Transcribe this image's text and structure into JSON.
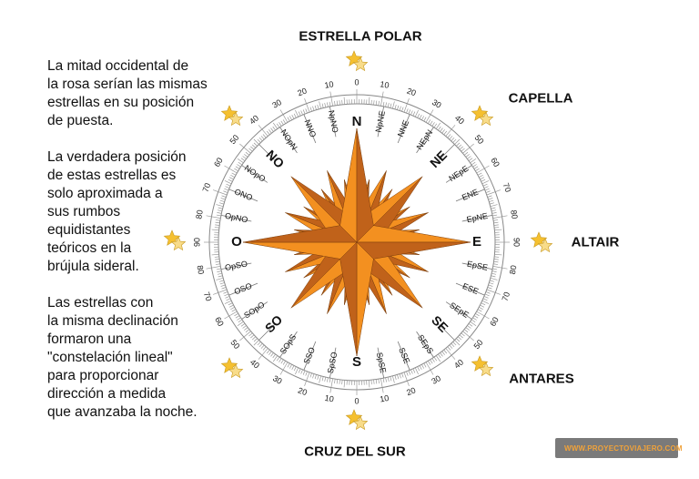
{
  "text_blocks": [
    "La mitad occidental de\nla rosa serían las mismas\nestrellas en su posición\nde puesta.",
    "La verdadera posición\nde estas estrellas es\nsolo aproximada a\nsus rumbos\nequidistantes\nteóricos en la\nbrújula sideral.",
    "Las estrellas con\nla misma declinación\nformaron una\n\"constelación lineal\"\npara proporcionar\ndirección a medida\nque avanzaba la noche."
  ],
  "star_labels": {
    "north": "ESTRELLA POLAR",
    "northeast": "CAPELLA",
    "east": "ALTAIR",
    "southeast": "ANTARES",
    "south": "CRUZ DEL SUR"
  },
  "compass_points": [
    "N",
    "NpNE",
    "NNE",
    "NEpN",
    "NE",
    "NEpE",
    "ENE",
    "EpNE",
    "E",
    "EpSE",
    "ESE",
    "SEpE",
    "SE",
    "SEpS",
    "SSE",
    "SpSE",
    "S",
    "SpSO",
    "SSO",
    "SOpS",
    "SO",
    "SOpO",
    "OSO",
    "OpSO",
    "O",
    "OpNO",
    "ONO",
    "NOpO",
    "NO",
    "NOpN",
    "NNO",
    "NpNO"
  ],
  "degree_labels": [
    "0",
    "10",
    "20",
    "30",
    "40",
    "50",
    "60",
    "70",
    "80",
    "90"
  ],
  "logo_text": "WWW.PROYECTOVIAJERO.COM",
  "colors": {
    "rose_light": "#f39020",
    "rose_dark": "#c0621a",
    "star": "#f5c030",
    "star_light": "#f8dc8a",
    "ring": "#888888"
  }
}
